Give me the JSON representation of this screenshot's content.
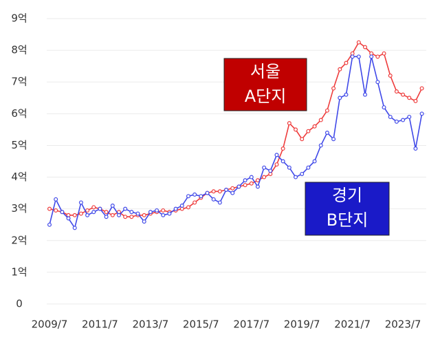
{
  "chart_data": {
    "type": "line",
    "categories": [
      "2009/7",
      null,
      null,
      null,
      null,
      null,
      null,
      null,
      "2011/7",
      null,
      null,
      null,
      null,
      null,
      null,
      null,
      "2013/7",
      null,
      null,
      null,
      null,
      null,
      null,
      null,
      "2015/7",
      null,
      null,
      null,
      null,
      null,
      null,
      null,
      "2017/7",
      null,
      null,
      null,
      null,
      null,
      null,
      null,
      "2019/7",
      null,
      null,
      null,
      null,
      null,
      null,
      null,
      "2021/7",
      null,
      null,
      null,
      null,
      null,
      null,
      null,
      "2023/7",
      null,
      null,
      null
    ],
    "series": [
      {
        "name": "서울 A단지",
        "color": "#ee3b3b",
        "values": [
          3.0,
          2.95,
          2.9,
          2.8,
          2.8,
          2.85,
          2.95,
          3.05,
          3.0,
          2.9,
          2.8,
          2.9,
          2.75,
          2.75,
          2.8,
          2.8,
          2.85,
          2.9,
          2.95,
          2.9,
          2.95,
          3.0,
          3.05,
          3.2,
          3.35,
          3.5,
          3.55,
          3.55,
          3.6,
          3.65,
          3.7,
          3.75,
          3.8,
          3.9,
          4.0,
          4.1,
          4.4,
          4.9,
          5.7,
          5.5,
          5.2,
          5.45,
          5.6,
          5.8,
          6.1,
          6.8,
          7.4,
          7.6,
          7.9,
          8.25,
          8.1,
          7.9,
          7.8,
          7.9,
          7.2,
          6.7,
          6.6,
          6.5,
          6.4,
          6.8
        ]
      },
      {
        "name": "경기 B단지",
        "color": "#3f48e8",
        "values": [
          2.5,
          3.3,
          2.9,
          2.7,
          2.4,
          3.2,
          2.8,
          2.9,
          3.0,
          2.75,
          3.1,
          2.8,
          3.0,
          2.9,
          2.85,
          2.6,
          2.9,
          2.95,
          2.8,
          2.85,
          3.0,
          3.1,
          3.4,
          3.45,
          3.4,
          3.5,
          3.3,
          3.2,
          3.6,
          3.5,
          3.7,
          3.9,
          4.0,
          3.7,
          4.3,
          4.2,
          4.7,
          4.5,
          4.3,
          4.0,
          4.1,
          4.3,
          4.5,
          5.0,
          5.4,
          5.2,
          6.5,
          6.6,
          7.8,
          7.8,
          6.6,
          7.8,
          7.0,
          6.2,
          5.9,
          5.75,
          5.8,
          5.9,
          4.9,
          6.0
        ]
      }
    ],
    "ylim": [
      0,
      9
    ],
    "yticks": [
      0,
      {
        "value": 1,
        "label": "1억"
      },
      {
        "value": 2,
        "label": "2억"
      },
      {
        "value": 3,
        "label": "3억"
      },
      {
        "value": 4,
        "label": "4억"
      },
      {
        "value": 5,
        "label": "5억"
      },
      {
        "value": 6,
        "label": "6억"
      },
      {
        "value": 7,
        "label": "7억"
      },
      {
        "value": 8,
        "label": "8억"
      },
      {
        "value": 9,
        "label": "9억"
      }
    ],
    "grid": true,
    "annotations": [
      {
        "lines": [
          "서울",
          "A단지"
        ],
        "color": "#c00000"
      },
      {
        "lines": [
          "경기",
          "B단지"
        ],
        "color": "#1a1ac8"
      }
    ]
  }
}
